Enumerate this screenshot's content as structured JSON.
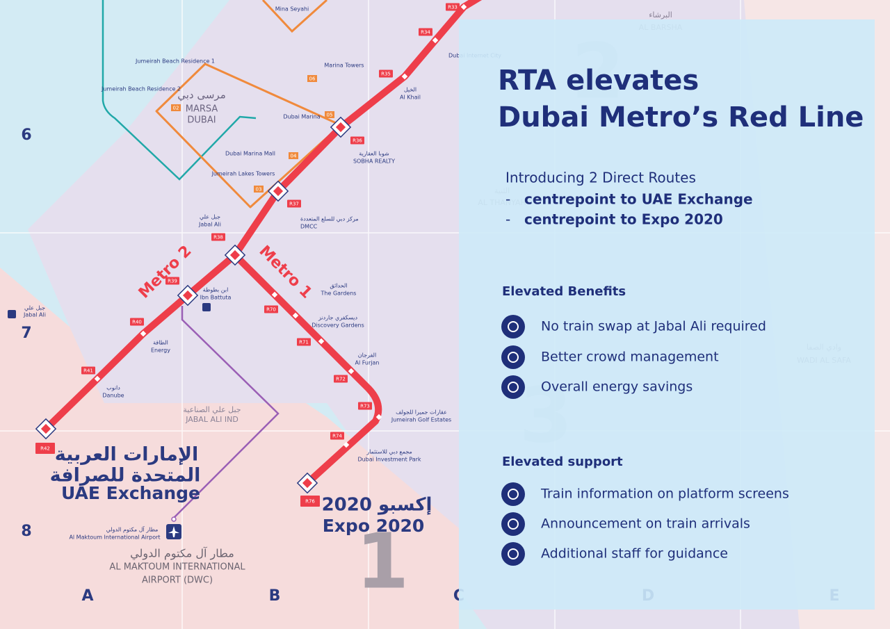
{
  "panel": {
    "title": [
      "RTA elevates",
      "Dubai Metro’s Red Line"
    ],
    "intro": "Introducing 2 Direct Routes",
    "routes": [
      {
        "marker": "-",
        "text": "centrepoint to UAE Exchange"
      },
      {
        "marker": "-",
        "text": "centrepoint to Expo 2020"
      }
    ],
    "sections": [
      {
        "heading": "Elevated Benefits",
        "items": [
          "No train swap at Jabal Ali required",
          "Better crowd management",
          "Overall energy savings"
        ]
      },
      {
        "heading": "Elevated support",
        "items": [
          "Train information on platform screens",
          "Announcement on train arrivals",
          "Additional staff for guidance"
        ]
      }
    ]
  },
  "map": {
    "grid": {
      "rows": [
        "6",
        "7",
        "8"
      ],
      "columns": [
        "A",
        "B",
        "C",
        "D",
        "E"
      ],
      "zones": [
        "1",
        "2",
        "3"
      ]
    },
    "lines": [
      "Metro 2",
      "Metro 1"
    ],
    "stations": [
      {
        "code": "R33"
      },
      {
        "code": "R34",
        "name": "Dubai Internet City"
      },
      {
        "code": "R35",
        "name": "Al Khail",
        "name_ar": "الخيل"
      },
      {
        "code": "R36",
        "name": "SOBHA REALTY",
        "name_ar": "شوبا العقارية"
      },
      {
        "code": "R37",
        "name": "DMCC",
        "name_ar": "مركز دبي للسلع المتعددة"
      },
      {
        "code": "R38",
        "name": "Jabal Ali",
        "name_ar": "جبل علي"
      },
      {
        "code": "R39",
        "name": "Ibn Battuta",
        "name_ar": "ابن بطوطة"
      },
      {
        "code": "R40",
        "name": "Energy",
        "name_ar": "الطاقة"
      },
      {
        "code": "R41",
        "name": "Danube",
        "name_ar": "دانوب"
      },
      {
        "code": "R42"
      },
      {
        "name": "The Gardens",
        "name_ar": "الحدائق"
      },
      {
        "code": "R70",
        "name": "Discovery Gardens",
        "name_ar": "ديسكفري جاردنز"
      },
      {
        "code": "R71",
        "name": "Al Furjan",
        "name_ar": "الفرجان"
      },
      {
        "code": "R72"
      },
      {
        "code": "R73",
        "name": "Jumeirah Golf Estates",
        "name_ar": "عقارات جميرا للجولف"
      },
      {
        "code": "R74",
        "name": "Dubai Investment Park",
        "name_ar": "مجمع دبي للاستثمار"
      },
      {
        "code": "R76"
      }
    ],
    "tram_stops": [
      {
        "name": "Mina Seyahi"
      },
      {
        "name": "Jumeirah Beach Residence 1"
      },
      {
        "code": "02",
        "name": "Jumeirah Beach Residence 2"
      },
      {
        "code": "06",
        "name": "Marina Towers"
      },
      {
        "code": "05",
        "name": "Dubai Marina"
      },
      {
        "code": "04",
        "name": "Dubai Marina Mall"
      },
      {
        "code": "03",
        "name": "Jumeirah Lakes Towers"
      }
    ],
    "marsa_dubai": {
      "ar": "مرسى دبي",
      "en": [
        "MARSA",
        "DUBAI"
      ]
    },
    "uae_exchange": {
      "ar": [
        "الإمارات العربية",
        "المتحدة للصرافة"
      ],
      "en": "UAE Exchange"
    },
    "expo": {
      "ar": "إكسبو 2020",
      "en": "Expo 2020"
    },
    "bus_stop": {
      "ar": "جبل علي",
      "en": "Jabal Ali"
    },
    "airport": {
      "ar_small": "مطار آل مكتوم الدولي",
      "en_small": "Al Maktoum International Airport",
      "ar": "مطار آل مكتوم الدولي",
      "en": [
        "AL MAKTOUM INTERNATIONAL",
        "AIRPORT (DWC)"
      ]
    },
    "districts": [
      {
        "ar": "البرشاء",
        "en": "AL BARSHA"
      },
      {
        "ar": "الثنية",
        "en": "AL THANYAH"
      },
      {
        "ar": "وادي الصفا",
        "en": "WADI AL SAFA"
      },
      {
        "ar": "جبل علي الصناعية",
        "en": "JABAL ALI IND"
      }
    ]
  }
}
